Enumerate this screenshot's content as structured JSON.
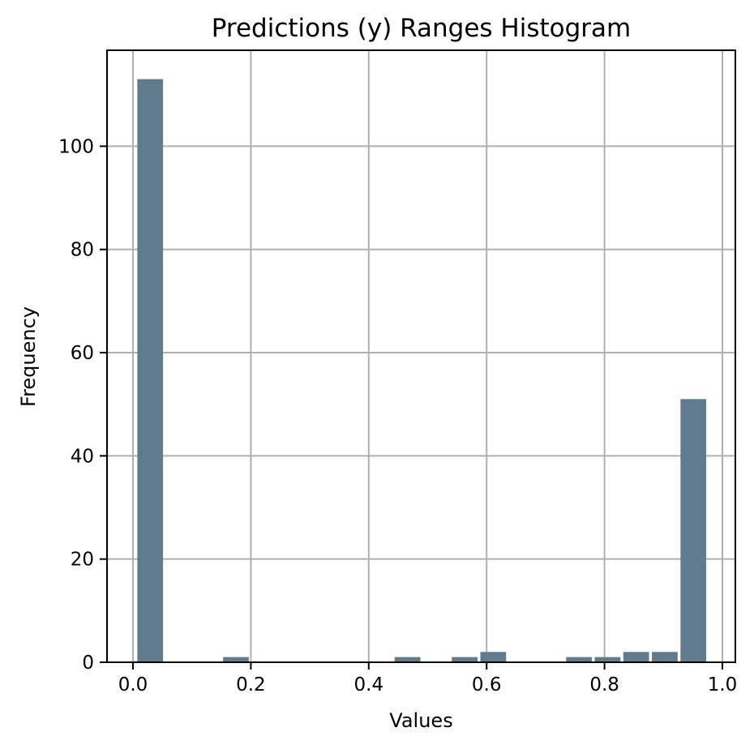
{
  "chart_data": {
    "type": "bar",
    "title": "Predictions (y) Ranges Histogram",
    "xlabel": "Values",
    "ylabel": "Frequency",
    "bin_edges": [
      0.005,
      0.0535,
      0.102,
      0.1505,
      0.199,
      0.2475,
      0.296,
      0.3445,
      0.393,
      0.4415,
      0.49,
      0.5385,
      0.587,
      0.6355,
      0.684,
      0.7325,
      0.781,
      0.8295,
      0.878,
      0.9265,
      0.975
    ],
    "values": [
      113,
      0,
      0,
      1,
      0,
      0,
      0,
      0,
      0,
      1,
      0,
      1,
      2,
      0,
      0,
      1,
      1,
      2,
      2,
      51
    ],
    "xlim": [
      -0.044,
      1.022
    ],
    "ylim": [
      0,
      118.6
    ],
    "xticks": [
      "0.0",
      "0.2",
      "0.4",
      "0.6",
      "0.8",
      "1.0"
    ],
    "xtick_values": [
      0.0,
      0.2,
      0.4,
      0.6,
      0.8,
      1.0
    ],
    "yticks": [
      "0",
      "20",
      "40",
      "60",
      "80",
      "100"
    ],
    "ytick_values": [
      0,
      20,
      40,
      60,
      80,
      100
    ],
    "grid": true,
    "bar_color": "#607b8b"
  }
}
